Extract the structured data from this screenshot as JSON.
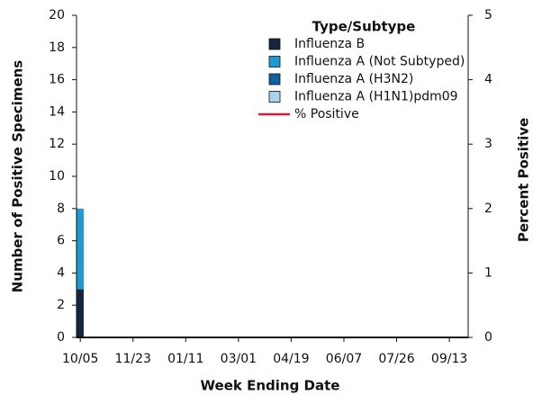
{
  "chart_data": {
    "type": "bar",
    "stacked": true,
    "xlabel": "Week Ending Date",
    "ylabel": "Number of Positive Specimens",
    "y2label": "Percent Positive",
    "legend_title": "Type/Subtype",
    "legend": "top-right",
    "categories": [
      "10/05",
      null,
      null,
      null,
      null,
      null,
      null,
      "11/23",
      null,
      null,
      null,
      null,
      null,
      null,
      "01/11",
      null,
      null,
      null,
      null,
      null,
      null,
      "03/01",
      null,
      null,
      null,
      null,
      null,
      null,
      "04/19",
      null,
      null,
      null,
      null,
      null,
      null,
      "06/07",
      null,
      null,
      null,
      null,
      null,
      null,
      "07/26",
      null,
      null,
      null,
      null,
      null,
      null,
      "09/13",
      null,
      null
    ],
    "ylim": [
      0,
      20
    ],
    "yticks": [
      0,
      2,
      4,
      6,
      8,
      10,
      12,
      14,
      16,
      18,
      20
    ],
    "y2lim": [
      0,
      5
    ],
    "y2ticks": [
      0,
      1,
      2,
      3,
      4,
      5
    ],
    "series": [
      {
        "name": "Influenza B",
        "color": "#15243f",
        "values": [
          3,
          0,
          0,
          0,
          0,
          0,
          0,
          0,
          0,
          0,
          0,
          0,
          0,
          0,
          0,
          0,
          0,
          0,
          0,
          0,
          0,
          0,
          0,
          0,
          0,
          0,
          0,
          0,
          0,
          0,
          0,
          0,
          0,
          0,
          0,
          0,
          0,
          0,
          0,
          0,
          0,
          0,
          0,
          0,
          0,
          0,
          0,
          0,
          0,
          0,
          0,
          0
        ]
      },
      {
        "name": "Influenza A (Not Subtyped)",
        "color": "#1b9ad6",
        "values": [
          5,
          0,
          0,
          0,
          0,
          0,
          0,
          0,
          0,
          0,
          0,
          0,
          0,
          0,
          0,
          0,
          0,
          0,
          0,
          0,
          0,
          0,
          0,
          0,
          0,
          0,
          0,
          0,
          0,
          0,
          0,
          0,
          0,
          0,
          0,
          0,
          0,
          0,
          0,
          0,
          0,
          0,
          0,
          0,
          0,
          0,
          0,
          0,
          0,
          0,
          0,
          0
        ]
      },
      {
        "name": "Influenza A (H3N2)",
        "color": "#105f9e",
        "values": [
          0,
          0,
          0,
          0,
          0,
          0,
          0,
          0,
          0,
          0,
          0,
          0,
          0,
          0,
          0,
          0,
          0,
          0,
          0,
          0,
          0,
          0,
          0,
          0,
          0,
          0,
          0,
          0,
          0,
          0,
          0,
          0,
          0,
          0,
          0,
          0,
          0,
          0,
          0,
          0,
          0,
          0,
          0,
          0,
          0,
          0,
          0,
          0,
          0,
          0,
          0,
          0
        ]
      },
      {
        "name": "Influenza A (H1N1)pdm09",
        "color": "#a7d3ee",
        "values": [
          0,
          0,
          0,
          0,
          0,
          0,
          0,
          0,
          0,
          0,
          0,
          0,
          0,
          0,
          0,
          0,
          0,
          0,
          0,
          0,
          0,
          0,
          0,
          0,
          0,
          0,
          0,
          0,
          0,
          0,
          0,
          0,
          0,
          0,
          0,
          0,
          0,
          0,
          0,
          0,
          0,
          0,
          0,
          0,
          0,
          0,
          0,
          0,
          0,
          0,
          0,
          0
        ]
      },
      {
        "name": "% Positive",
        "type": "line",
        "axis": "y2",
        "color": "#e0173e",
        "values": [
          null,
          null,
          null,
          null,
          null,
          null,
          null,
          null,
          null,
          null,
          null,
          null,
          null,
          null,
          null,
          null,
          null,
          null,
          null,
          null,
          null,
          null,
          null,
          null,
          null,
          null,
          null,
          null,
          null,
          null,
          null,
          null,
          null,
          null,
          null,
          null,
          null,
          null,
          null,
          null,
          null,
          null,
          null,
          null,
          null,
          null,
          null,
          null,
          null,
          null,
          null,
          null
        ]
      }
    ]
  }
}
